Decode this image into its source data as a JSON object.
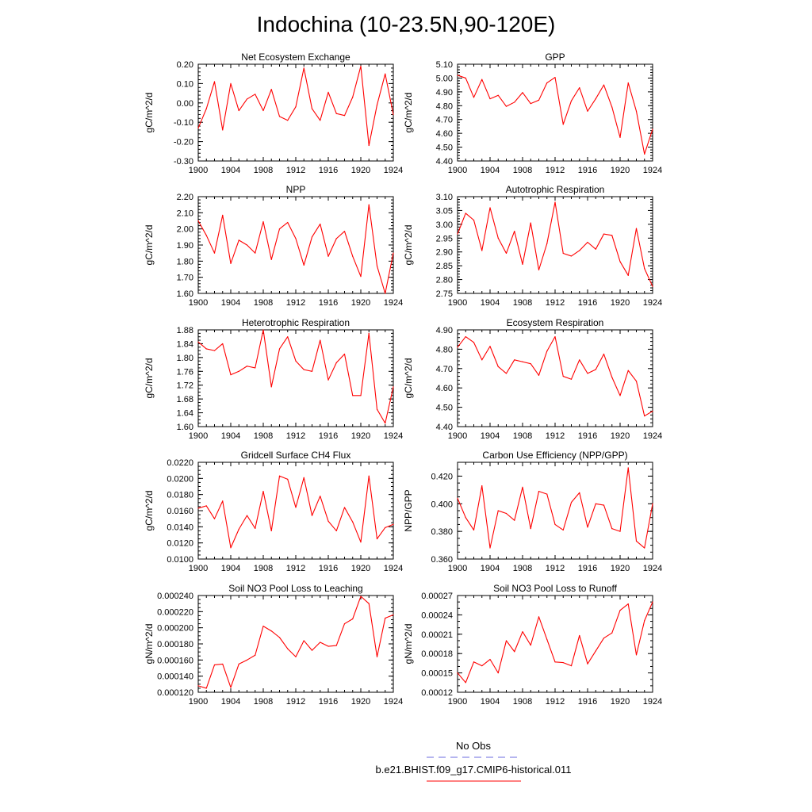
{
  "figure": {
    "title": "Indochina (10-23.5N,90-120E)"
  },
  "legend": {
    "items": [
      {
        "label": "No Obs",
        "color": "#6b6bdf",
        "style": "dashed"
      },
      {
        "label": "b.e21.BHIST.f09_g17.CMIP6-historical.011",
        "color": "#ff0000",
        "style": "solid"
      }
    ]
  },
  "chart_data": [
    {
      "type": "line",
      "title": "Net Ecosystem Exchange",
      "ylabel": "gC/m^2/d",
      "xlim": [
        1900,
        1924
      ],
      "ylim": [
        -0.3,
        0.2
      ],
      "xticks": [
        "1900",
        "1904",
        "1908",
        "1912",
        "1916",
        "1920",
        "1924"
      ],
      "yticks": [
        "-0.30",
        "-0.20",
        "-0.10",
        "0.00",
        "0.10",
        "0.20"
      ],
      "minor_y_step": 0.02,
      "x": [
        1900,
        1901,
        1902,
        1903,
        1904,
        1905,
        1906,
        1907,
        1908,
        1909,
        1910,
        1911,
        1912,
        1913,
        1914,
        1915,
        1916,
        1917,
        1918,
        1919,
        1920,
        1921,
        1922,
        1923,
        1924
      ],
      "series": [
        {
          "color": "#ff0000",
          "values": [
            -0.13,
            -0.03,
            0.11,
            -0.14,
            0.1,
            -0.04,
            0.02,
            0.045,
            -0.04,
            0.07,
            -0.07,
            -0.09,
            -0.02,
            0.18,
            -0.03,
            -0.09,
            0.055,
            -0.055,
            -0.065,
            0.03,
            0.19,
            -0.22,
            -0.01,
            0.15,
            -0.06
          ]
        }
      ]
    },
    {
      "type": "line",
      "title": "GPP",
      "ylabel": "gC/m^2/d",
      "xlim": [
        1900,
        1924
      ],
      "ylim": [
        4.4,
        5.1
      ],
      "xticks": [
        "1900",
        "1904",
        "1908",
        "1912",
        "1916",
        "1920",
        "1924"
      ],
      "yticks": [
        "4.40",
        "4.50",
        "4.60",
        "4.70",
        "4.80",
        "4.90",
        "5.00",
        "5.10"
      ],
      "minor_y_step": 0.02,
      "x": [
        1900,
        1901,
        1902,
        1903,
        1904,
        1905,
        1906,
        1907,
        1908,
        1909,
        1910,
        1911,
        1912,
        1913,
        1914,
        1915,
        1916,
        1917,
        1918,
        1919,
        1920,
        1921,
        1922,
        1923,
        1924
      ],
      "series": [
        {
          "color": "#ff0000",
          "values": [
            5.02,
            5.0,
            4.86,
            4.99,
            4.85,
            4.875,
            4.795,
            4.825,
            4.895,
            4.815,
            4.84,
            4.965,
            5.005,
            4.665,
            4.835,
            4.93,
            4.76,
            4.85,
            4.95,
            4.79,
            4.57,
            4.965,
            4.76,
            4.45,
            4.63
          ]
        }
      ]
    },
    {
      "type": "line",
      "title": "NPP",
      "ylabel": "gC/m^2/d",
      "xlim": [
        1900,
        1924
      ],
      "ylim": [
        1.6,
        2.2
      ],
      "xticks": [
        "1900",
        "1904",
        "1908",
        "1912",
        "1916",
        "1920",
        "1924"
      ],
      "yticks": [
        "1.60",
        "1.70",
        "1.80",
        "1.90",
        "2.00",
        "2.10",
        "2.20"
      ],
      "minor_y_step": 0.02,
      "x": [
        1900,
        1901,
        1902,
        1903,
        1904,
        1905,
        1906,
        1907,
        1908,
        1909,
        1910,
        1911,
        1912,
        1913,
        1914,
        1915,
        1916,
        1917,
        1918,
        1919,
        1920,
        1921,
        1922,
        1923,
        1924
      ],
      "series": [
        {
          "color": "#ff0000",
          "values": [
            2.05,
            1.96,
            1.85,
            2.085,
            1.785,
            1.93,
            1.9,
            1.85,
            2.045,
            1.81,
            2.0,
            2.04,
            1.94,
            1.775,
            1.95,
            2.03,
            1.83,
            1.94,
            1.985,
            1.83,
            1.705,
            2.15,
            1.77,
            1.6,
            1.85
          ]
        }
      ]
    },
    {
      "type": "line",
      "title": "Autotrophic Respiration",
      "ylabel": "gC/m^2/d",
      "xlim": [
        1900,
        1924
      ],
      "ylim": [
        2.75,
        3.1
      ],
      "xticks": [
        "1900",
        "1904",
        "1908",
        "1912",
        "1916",
        "1920",
        "1924"
      ],
      "yticks": [
        "2.75",
        "2.80",
        "2.85",
        "2.90",
        "2.95",
        "3.00",
        "3.05",
        "3.10"
      ],
      "minor_y_step": 0.01,
      "x": [
        1900,
        1901,
        1902,
        1903,
        1904,
        1905,
        1906,
        1907,
        1908,
        1909,
        1910,
        1911,
        1912,
        1913,
        1914,
        1915,
        1916,
        1917,
        1918,
        1919,
        1920,
        1921,
        1922,
        1923,
        1924
      ],
      "series": [
        {
          "color": "#ff0000",
          "values": [
            2.965,
            3.04,
            3.015,
            2.905,
            3.06,
            2.95,
            2.895,
            2.975,
            2.855,
            3.005,
            2.835,
            2.93,
            3.08,
            2.895,
            2.885,
            2.905,
            2.935,
            2.91,
            2.965,
            2.96,
            2.865,
            2.815,
            2.985,
            2.84,
            2.775
          ]
        }
      ]
    },
    {
      "type": "line",
      "title": "Heterotrophic Respiration",
      "ylabel": "gC/m^2/d",
      "xlim": [
        1900,
        1924
      ],
      "ylim": [
        1.6,
        1.88
      ],
      "xticks": [
        "1900",
        "1904",
        "1908",
        "1912",
        "1916",
        "1920",
        "1924"
      ],
      "yticks": [
        "1.60",
        "1.64",
        "1.68",
        "1.72",
        "1.76",
        "1.80",
        "1.84",
        "1.88"
      ],
      "minor_y_step": 0.01,
      "x": [
        1900,
        1901,
        1902,
        1903,
        1904,
        1905,
        1906,
        1907,
        1908,
        1909,
        1910,
        1911,
        1912,
        1913,
        1914,
        1915,
        1916,
        1917,
        1918,
        1919,
        1920,
        1921,
        1922,
        1923,
        1924
      ],
      "series": [
        {
          "color": "#ff0000",
          "values": [
            1.845,
            1.825,
            1.82,
            1.84,
            1.75,
            1.76,
            1.775,
            1.77,
            1.88,
            1.715,
            1.825,
            1.86,
            1.79,
            1.765,
            1.76,
            1.85,
            1.735,
            1.785,
            1.81,
            1.69,
            1.69,
            1.87,
            1.65,
            1.61,
            1.715
          ]
        }
      ]
    },
    {
      "type": "line",
      "title": "Ecosystem Respiration",
      "ylabel": "gC/m^2/d",
      "xlim": [
        1900,
        1924
      ],
      "ylim": [
        4.4,
        4.9
      ],
      "xticks": [
        "1900",
        "1904",
        "1908",
        "1912",
        "1916",
        "1920",
        "1924"
      ],
      "yticks": [
        "4.40",
        "4.50",
        "4.60",
        "4.70",
        "4.80",
        "4.90"
      ],
      "minor_y_step": 0.02,
      "x": [
        1900,
        1901,
        1902,
        1903,
        1904,
        1905,
        1906,
        1907,
        1908,
        1909,
        1910,
        1911,
        1912,
        1913,
        1914,
        1915,
        1916,
        1917,
        1918,
        1919,
        1920,
        1921,
        1922,
        1923,
        1924
      ],
      "series": [
        {
          "color": "#ff0000",
          "values": [
            4.81,
            4.865,
            4.835,
            4.745,
            4.815,
            4.71,
            4.675,
            4.745,
            4.735,
            4.725,
            4.665,
            4.79,
            4.865,
            4.66,
            4.645,
            4.745,
            4.675,
            4.695,
            4.775,
            4.655,
            4.56,
            4.69,
            4.635,
            4.455,
            4.48
          ]
        }
      ]
    },
    {
      "type": "line",
      "title": "Gridcell Surface CH4 Flux",
      "ylabel": "gC/m^2/d",
      "xlim": [
        1900,
        1924
      ],
      "ylim": [
        0.01,
        0.022
      ],
      "xticks": [
        "1900",
        "1904",
        "1908",
        "1912",
        "1916",
        "1920",
        "1924"
      ],
      "yticks": [
        "0.0100",
        "0.0120",
        "0.0140",
        "0.0160",
        "0.0180",
        "0.0200",
        "0.0220"
      ],
      "minor_y_step": 0.0005,
      "x": [
        1900,
        1901,
        1902,
        1903,
        1904,
        1905,
        1906,
        1907,
        1908,
        1909,
        1910,
        1911,
        1912,
        1913,
        1914,
        1915,
        1916,
        1917,
        1918,
        1919,
        1920,
        1921,
        1922,
        1923,
        1924
      ],
      "series": [
        {
          "color": "#ff0000",
          "values": [
            0.0163,
            0.0166,
            0.015,
            0.0172,
            0.0114,
            0.0137,
            0.0154,
            0.0138,
            0.0184,
            0.0135,
            0.0203,
            0.0199,
            0.0164,
            0.0201,
            0.0154,
            0.0178,
            0.0147,
            0.0135,
            0.0164,
            0.0146,
            0.0121,
            0.0203,
            0.0125,
            0.0139,
            0.0143
          ]
        }
      ]
    },
    {
      "type": "line",
      "title": "Carbon Use Efficiency (NPP/GPP)",
      "ylabel": "NPP/GPP",
      "xlim": [
        1900,
        1924
      ],
      "ylim": [
        0.36,
        0.43
      ],
      "xticks": [
        "1900",
        "1904",
        "1908",
        "1912",
        "1916",
        "1920",
        "1924"
      ],
      "yticks": [
        "0.360",
        "0.380",
        "0.400",
        "0.420"
      ],
      "minor_y_step": 0.005,
      "x": [
        1900,
        1901,
        1902,
        1903,
        1904,
        1905,
        1906,
        1907,
        1908,
        1909,
        1910,
        1911,
        1912,
        1913,
        1914,
        1915,
        1916,
        1917,
        1918,
        1919,
        1920,
        1921,
        1922,
        1923,
        1924
      ],
      "series": [
        {
          "color": "#ff0000",
          "values": [
            0.404,
            0.39,
            0.381,
            0.413,
            0.368,
            0.395,
            0.393,
            0.388,
            0.412,
            0.382,
            0.409,
            0.407,
            0.385,
            0.381,
            0.401,
            0.408,
            0.383,
            0.4,
            0.399,
            0.382,
            0.38,
            0.426,
            0.373,
            0.368,
            0.4
          ]
        }
      ]
    },
    {
      "type": "line",
      "title": "Soil NO3 Pool Loss to Leaching",
      "ylabel": "gN/m^2/d",
      "xlim": [
        1900,
        1924
      ],
      "ylim": [
        0.00012,
        0.00024
      ],
      "xticks": [
        "1900",
        "1904",
        "1908",
        "1912",
        "1916",
        "1920",
        "1924"
      ],
      "yticks": [
        "0.000120",
        "0.000140",
        "0.000160",
        "0.000180",
        "0.000200",
        "0.000220",
        "0.000240"
      ],
      "minor_y_step": 5e-06,
      "x": [
        1900,
        1901,
        1902,
        1903,
        1904,
        1905,
        1906,
        1907,
        1908,
        1909,
        1910,
        1911,
        1912,
        1913,
        1914,
        1915,
        1916,
        1917,
        1918,
        1919,
        1920,
        1921,
        1922,
        1923,
        1924
      ],
      "series": [
        {
          "color": "#ff0000",
          "values": [
            0.000128,
            0.000125,
            0.000154,
            0.000155,
            0.000126,
            0.000155,
            0.00016,
            0.000166,
            0.000202,
            0.000196,
            0.000188,
            0.000174,
            0.000164,
            0.000184,
            0.000172,
            0.000182,
            0.000177,
            0.000178,
            0.000205,
            0.000211,
            0.000239,
            0.00023,
            0.000164,
            0.000212,
            0.000216
          ]
        }
      ]
    },
    {
      "type": "line",
      "title": "Soil NO3 Pool Loss to Runoff",
      "ylabel": "gN/m^2/d",
      "xlim": [
        1900,
        1924
      ],
      "ylim": [
        0.00012,
        0.00027
      ],
      "xticks": [
        "1900",
        "1904",
        "1908",
        "1912",
        "1916",
        "1920",
        "1924"
      ],
      "yticks": [
        "0.00012",
        "0.00015",
        "0.00018",
        "0.00021",
        "0.00024",
        "0.00027"
      ],
      "minor_y_step": 1e-05,
      "x": [
        1900,
        1901,
        1902,
        1903,
        1904,
        1905,
        1906,
        1907,
        1908,
        1909,
        1910,
        1911,
        1912,
        1913,
        1914,
        1915,
        1916,
        1917,
        1918,
        1919,
        1920,
        1921,
        1922,
        1923,
        1924
      ],
      "series": [
        {
          "color": "#ff0000",
          "values": [
            0.00015,
            0.000135,
            0.000167,
            0.000161,
            0.000171,
            0.00015,
            0.0002,
            0.000183,
            0.000214,
            0.000193,
            0.000237,
            0.000202,
            0.000167,
            0.000166,
            0.000161,
            0.000208,
            0.000164,
            0.000184,
            0.000204,
            0.000212,
            0.000247,
            0.000257,
            0.000178,
            0.000231,
            0.00026
          ]
        }
      ]
    }
  ]
}
